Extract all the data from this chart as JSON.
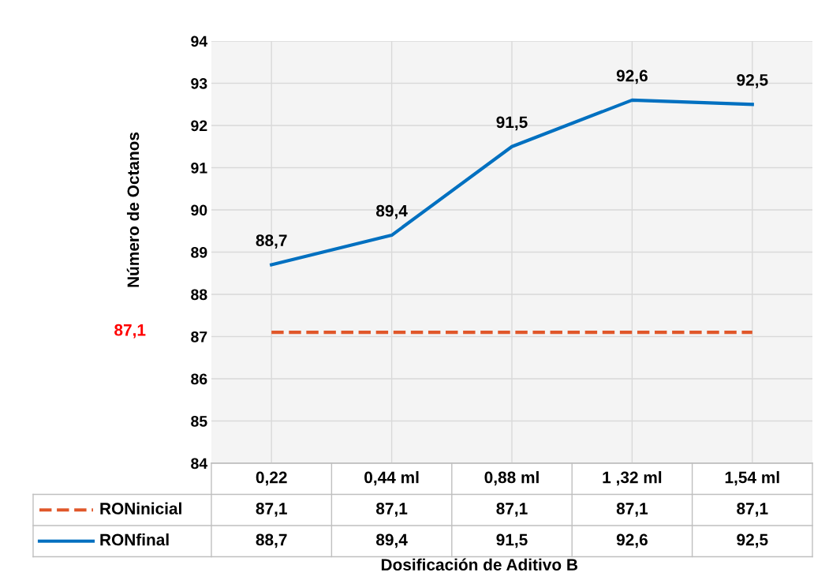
{
  "chart_data": {
    "type": "line",
    "ylabel": "Número de Octanos",
    "xlabel": "Dosificación de Aditivo B",
    "categories": [
      "0,22",
      "0,44 ml",
      "0,88 ml",
      "1 ,32 ml",
      "1,54 ml"
    ],
    "series": [
      {
        "name": "RONinicial",
        "color": "#e0572a",
        "line_style": "dashed",
        "values": [
          87.1,
          87.1,
          87.1,
          87.1,
          87.1
        ],
        "value_labels": [
          "87,1",
          "87,1",
          "87,1",
          "87,1",
          "87,1"
        ]
      },
      {
        "name": "RONfinal",
        "color": "#0070c0",
        "line_style": "solid",
        "values": [
          88.7,
          89.4,
          91.5,
          92.6,
          92.5
        ],
        "value_labels": [
          "88,7",
          "89,4",
          "91,5",
          "92,6",
          "92,5"
        ],
        "data_labels": true
      }
    ],
    "data_labels": true,
    "ylim": [
      84,
      94
    ],
    "yticks": [
      84,
      85,
      86,
      87,
      88,
      89,
      90,
      91,
      92,
      93,
      94
    ],
    "grid": true,
    "legend": "bottom",
    "annotations": [
      "87,1"
    ]
  }
}
